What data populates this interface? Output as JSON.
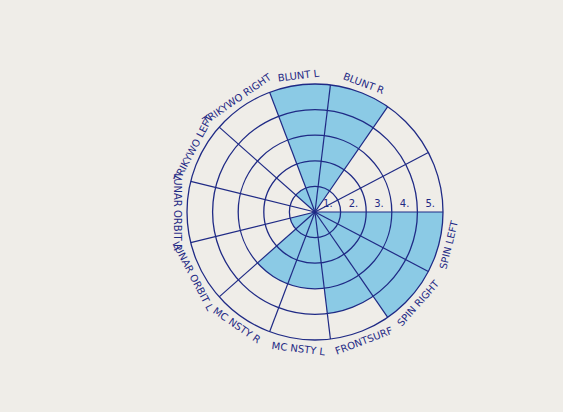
{
  "chart_data": {
    "type": "polar_area",
    "categories": [
      "SPIN LEFT",
      "SPIN RIGHT",
      "FRONTSURF",
      "MC NSTY L",
      "MC NSTY R",
      "LUNAR ORBIT L",
      "LUNAR ORBIT R",
      "TRIKYWO LEFT",
      "TRIKYWO RIGHT",
      "BLUNT L",
      "BLUNT R",
      null,
      null
    ],
    "values": [
      5,
      5,
      4,
      3,
      3,
      1,
      0,
      0,
      1,
      5,
      5,
      0,
      0
    ],
    "color": "#79c3e4",
    "ylim": [
      0,
      5
    ],
    "yticks": [
      {
        "value": 1,
        "label": "1."
      },
      {
        "value": 2,
        "label": "2."
      },
      {
        "value": 3,
        "label": "3."
      },
      {
        "value": 4,
        "label": "4."
      },
      {
        "value": 5,
        "label": "5."
      }
    ],
    "grid": true
  }
}
